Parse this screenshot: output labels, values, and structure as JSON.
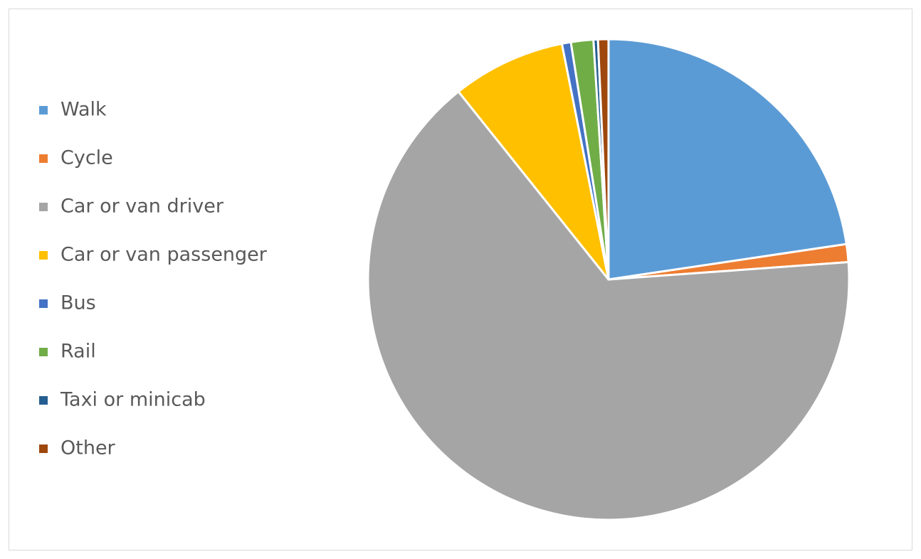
{
  "chart_data": {
    "type": "pie",
    "categories": [
      "Walk",
      "Cycle",
      "Car or van driver",
      "Car or van passenger",
      "Bus",
      "Rail",
      "Taxi or minicab",
      "Other"
    ],
    "values": [
      22.6,
      1.2,
      65.3,
      7.6,
      0.6,
      1.5,
      0.3,
      0.7
    ],
    "colors": [
      "#5b9bd5",
      "#ed7d31",
      "#a5a5a5",
      "#ffc000",
      "#4472c4",
      "#70ad47",
      "#255e91",
      "#9e480e"
    ],
    "legend": "left"
  }
}
